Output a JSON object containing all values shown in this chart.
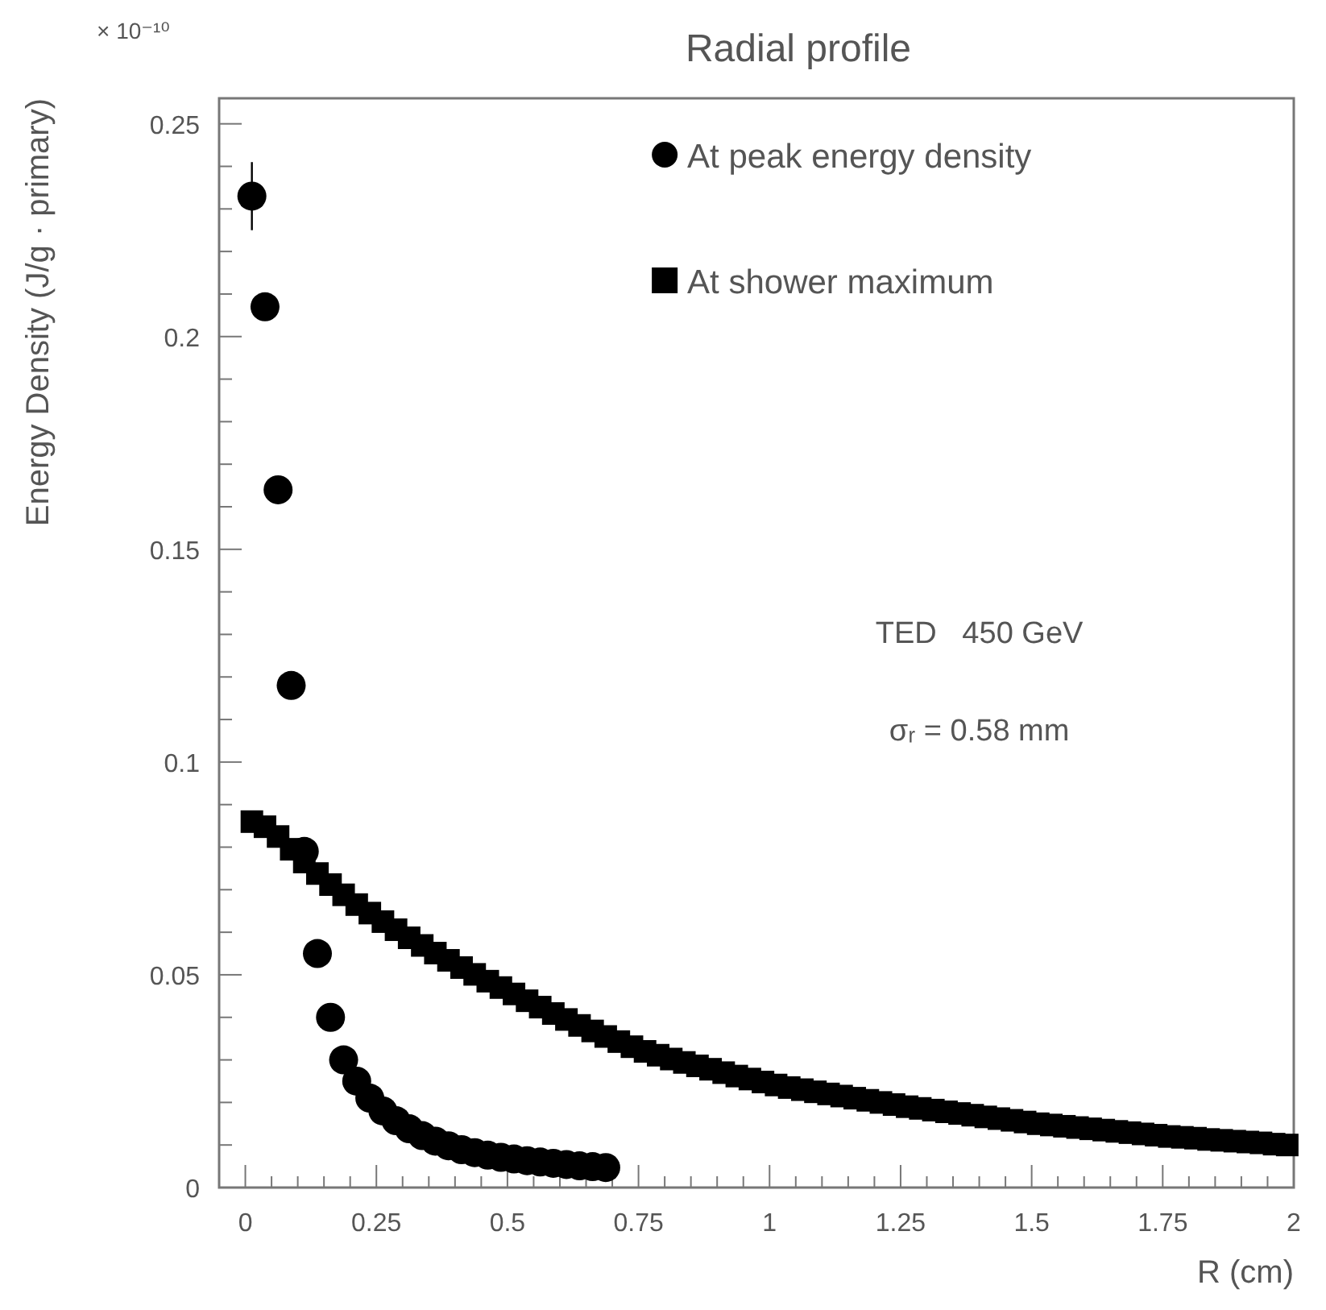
{
  "chart_data": {
    "type": "scatter",
    "title": "Radial profile",
    "xlabel": "R (cm)",
    "ylabel": "Energy Density (J/g · primary)",
    "annotations": [
      "× 10⁻¹⁰",
      "TED   450 GeV",
      "σᵣ = 0.58 mm"
    ],
    "xlim": [
      -0.05,
      2
    ],
    "ylim": [
      0,
      0.256
    ],
    "xticks": [
      0,
      {
        "value": 0.05,
        "label": null
      },
      {
        "value": 0.1,
        "label": null
      },
      {
        "value": 0.15,
        "label": null
      },
      {
        "value": 0.2,
        "label": null
      },
      0.25,
      {
        "value": 0.3,
        "label": null
      },
      {
        "value": 0.35,
        "label": null
      },
      {
        "value": 0.4,
        "label": null
      },
      {
        "value": 0.45,
        "label": null
      },
      0.5,
      {
        "value": 0.55,
        "label": null
      },
      {
        "value": 0.6,
        "label": null
      },
      {
        "value": 0.65,
        "label": null
      },
      {
        "value": 0.7,
        "label": null
      },
      0.75,
      {
        "value": 0.8,
        "label": null
      },
      {
        "value": 0.85,
        "label": null
      },
      {
        "value": 0.9,
        "label": null
      },
      {
        "value": 0.95,
        "label": null
      },
      1,
      {
        "value": 1.05,
        "label": null
      },
      {
        "value": 1.1,
        "label": null
      },
      {
        "value": 1.15,
        "label": null
      },
      {
        "value": 1.2,
        "label": null
      },
      1.25,
      {
        "value": 1.3,
        "label": null
      },
      {
        "value": 1.35,
        "label": null
      },
      {
        "value": 1.4,
        "label": null
      },
      {
        "value": 1.45,
        "label": null
      },
      1.5,
      {
        "value": 1.55,
        "label": null
      },
      {
        "value": 1.6,
        "label": null
      },
      {
        "value": 1.65,
        "label": null
      },
      {
        "value": 1.7,
        "label": null
      },
      1.75,
      {
        "value": 1.8,
        "label": null
      },
      {
        "value": 1.85,
        "label": null
      },
      {
        "value": 1.9,
        "label": null
      },
      {
        "value": 1.95,
        "label": null
      },
      2
    ],
    "yticks": [
      0,
      {
        "value": 0.01,
        "label": null
      },
      {
        "value": 0.02,
        "label": null
      },
      {
        "value": 0.03,
        "label": null
      },
      {
        "value": 0.04,
        "label": null
      },
      0.05,
      {
        "value": 0.06,
        "label": null
      },
      {
        "value": 0.07,
        "label": null
      },
      {
        "value": 0.08,
        "label": null
      },
      {
        "value": 0.09,
        "label": null
      },
      0.1,
      {
        "value": 0.11,
        "label": null
      },
      {
        "value": 0.12,
        "label": null
      },
      {
        "value": 0.13,
        "label": null
      },
      {
        "value": 0.14,
        "label": null
      },
      0.15,
      {
        "value": 0.16,
        "label": null
      },
      {
        "value": 0.17,
        "label": null
      },
      {
        "value": 0.18,
        "label": null
      },
      {
        "value": 0.19,
        "label": null
      },
      0.2,
      {
        "value": 0.21,
        "label": null
      },
      {
        "value": 0.22,
        "label": null
      },
      {
        "value": 0.23,
        "label": null
      },
      {
        "value": 0.24,
        "label": null
      },
      0.25
    ],
    "grid": false,
    "legend": "top right",
    "series": [
      {
        "name": "At peak energy density",
        "color": "#000000",
        "marker": "circle",
        "x": [
          0.0125,
          0.0375,
          0.0625,
          0.0875,
          0.1125,
          0.1375,
          0.1625,
          0.1875,
          0.2125,
          0.2375,
          0.2625,
          0.2875,
          0.3125,
          0.3375,
          0.3625,
          0.3875,
          0.4125,
          0.4375,
          0.4625,
          0.4875,
          0.5125,
          0.5375,
          0.5625,
          0.5875,
          0.6125,
          0.6375,
          0.6625,
          0.6875
        ],
        "values": [
          0.233,
          0.207,
          0.164,
          0.118,
          0.079,
          0.055,
          0.04,
          0.03,
          0.025,
          0.021,
          0.018,
          0.0157,
          0.0138,
          0.0122,
          0.0109,
          0.0098,
          0.0089,
          0.0082,
          0.0076,
          0.0071,
          0.0067,
          0.0063,
          0.006,
          0.0057,
          0.0054,
          0.0051,
          0.0049,
          0.0047
        ],
        "errors": [
          0.008,
          null,
          null,
          null,
          null,
          null,
          null,
          null,
          null,
          null,
          null,
          null,
          null,
          null,
          null,
          null,
          null,
          null,
          null,
          null,
          null,
          null,
          null,
          null,
          null,
          null,
          null,
          null
        ]
      },
      {
        "name": "At shower maximum",
        "color": "#000000",
        "marker": "square",
        "x": [
          0.0125,
          0.0375,
          0.0625,
          0.0875,
          0.1125,
          0.1375,
          0.1625,
          0.1875,
          0.2125,
          0.2375,
          0.2625,
          0.2875,
          0.3125,
          0.3375,
          0.3625,
          0.3875,
          0.4125,
          0.4375,
          0.4625,
          0.4875,
          0.5125,
          0.5375,
          0.5625,
          0.5875,
          0.6125,
          0.6375,
          0.6625,
          0.6875,
          0.7125,
          0.7375,
          0.7625,
          0.7875,
          0.8125,
          0.8375,
          0.8625,
          0.8875,
          0.9125,
          0.9375,
          0.9625,
          0.9875,
          1.0125,
          1.0375,
          1.0625,
          1.0875,
          1.1125,
          1.1375,
          1.1625,
          1.1875,
          1.2125,
          1.2375,
          1.2625,
          1.2875,
          1.3125,
          1.3375,
          1.3625,
          1.3875,
          1.4125,
          1.4375,
          1.4625,
          1.4875,
          1.5125,
          1.5375,
          1.5625,
          1.5875,
          1.6125,
          1.6375,
          1.6625,
          1.6875,
          1.7125,
          1.7375,
          1.7625,
          1.7875,
          1.8125,
          1.8375,
          1.8625,
          1.8875,
          1.9125,
          1.9375,
          1.9625,
          1.9875
        ],
        "values": [
          0.086,
          0.0848,
          0.0825,
          0.0795,
          0.0765,
          0.0738,
          0.0712,
          0.0688,
          0.0665,
          0.0645,
          0.0625,
          0.0606,
          0.0587,
          0.0569,
          0.0551,
          0.0534,
          0.0517,
          0.0501,
          0.0485,
          0.047,
          0.0455,
          0.0439,
          0.0424,
          0.0409,
          0.0395,
          0.0381,
          0.0368,
          0.0355,
          0.0343,
          0.0331,
          0.032,
          0.0311,
          0.0302,
          0.0294,
          0.0286,
          0.0278,
          0.027,
          0.0262,
          0.0255,
          0.0248,
          0.0241,
          0.0235,
          0.023,
          0.0225,
          0.022,
          0.0215,
          0.021,
          0.0205,
          0.02,
          0.0195,
          0.019,
          0.0186,
          0.0182,
          0.0178,
          0.0174,
          0.017,
          0.0166,
          0.0162,
          0.0158,
          0.0154,
          0.015,
          0.0147,
          0.0144,
          0.0141,
          0.0138,
          0.0135,
          0.0132,
          0.0129,
          0.0126,
          0.0123,
          0.012,
          0.0118,
          0.0116,
          0.0113,
          0.0111,
          0.0109,
          0.0107,
          0.0105,
          0.0102,
          0.01
        ]
      }
    ]
  }
}
